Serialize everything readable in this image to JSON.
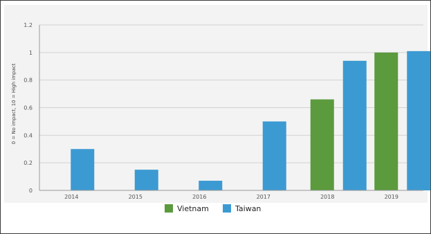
{
  "chart_data": {
    "type": "bar",
    "categories": [
      "2014",
      "2015",
      "2016",
      "2017",
      "2018",
      "2019"
    ],
    "series": [
      {
        "name": "Vietnam",
        "color": "#5b9a3d",
        "values": [
          null,
          null,
          null,
          null,
          0.66,
          1.0
        ]
      },
      {
        "name": "Taiwan",
        "color": "#3c9ad2",
        "values": [
          0.3,
          0.15,
          0.07,
          0.5,
          0.94,
          1.01
        ]
      }
    ],
    "ylabel": "0 = No impact, 10 = High impact",
    "ylim": [
      0,
      1.2
    ],
    "yticks": [
      "0",
      "0.2",
      "0.4",
      "0.6",
      "0.8",
      "1",
      "1.2"
    ],
    "grid": "horizontal",
    "legend": "bottom-center"
  }
}
